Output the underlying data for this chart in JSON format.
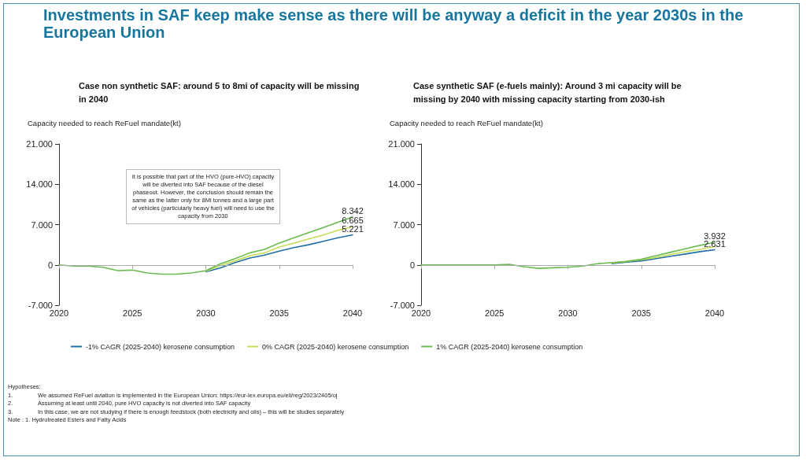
{
  "chart_data": [
    {
      "type": "line",
      "title": "Case non synthetic SAF: around 5 to 8mi of capacity will be missing in 2040",
      "ylabel": "Capacity needed to reach ReFuel mandate(kt)",
      "x": [
        2020,
        2021,
        2022,
        2023,
        2024,
        2025,
        2026,
        2027,
        2028,
        2029,
        2030,
        2031,
        2032,
        2033,
        2034,
        2035,
        2036,
        2037,
        2038,
        2039,
        2040
      ],
      "xlim": [
        2020,
        2040
      ],
      "xticks": [
        2020,
        2025,
        2030,
        2035,
        2040
      ],
      "ylim": [
        -7000,
        21000
      ],
      "yticks": [
        {
          "value": -7000,
          "label": "-7.000"
        },
        0,
        {
          "value": 7000,
          "label": "7.000"
        },
        {
          "value": 14000,
          "label": "14.000"
        },
        {
          "value": 21000,
          "label": "21.000"
        }
      ],
      "grid": false,
      "marker": "none",
      "line_style": "solid",
      "legend": "bottom",
      "ref_lines": [
        {
          "axis": "y",
          "value": 0,
          "color": "#aaaaaa"
        }
      ],
      "annotations": [
        "It is possible that part of the HVO (pure-HVO) capacity will be diverted  into SAF because of the diesel phaseout. However, the conclusion should remain the same as the latter only for 8Mi tonnes and a large part of vehicles (particularly heavy fuel) will need to use the capacity from 2030"
      ],
      "series": [
        {
          "name": "-1% CAGR (2025-2040) kerosene consumption",
          "color": "#1f6fa6",
          "values": [
            null,
            null,
            null,
            null,
            null,
            null,
            null,
            null,
            null,
            null,
            -1200,
            -500,
            400,
            1200,
            1700,
            2400,
            3000,
            3500,
            4100,
            4700,
            5221
          ],
          "value_labels": [
            null,
            null,
            null,
            null,
            null,
            null,
            null,
            null,
            null,
            null,
            null,
            null,
            null,
            null,
            null,
            null,
            null,
            null,
            null,
            null,
            "5.221"
          ]
        },
        {
          "name": "0% CAGR (2025-2040) kerosene consumption",
          "color": "#c5dc55",
          "values": [
            null,
            null,
            null,
            null,
            null,
            null,
            null,
            null,
            null,
            null,
            -1100,
            -100,
            700,
            1600,
            2100,
            3100,
            3800,
            4500,
            5200,
            6000,
            6665
          ],
          "value_labels": [
            null,
            null,
            null,
            null,
            null,
            null,
            null,
            null,
            null,
            null,
            null,
            null,
            null,
            null,
            null,
            null,
            null,
            null,
            null,
            null,
            "6.665"
          ]
        },
        {
          "name": "1% CAGR (2025-2040) kerosene consumption",
          "color": "#6abb4f",
          "values": [
            0,
            -200,
            -200,
            -400,
            -1000,
            -900,
            -1400,
            -1600,
            -1600,
            -1400,
            -1000,
            200,
            1100,
            2100,
            2700,
            3800,
            4700,
            5600,
            6500,
            7400,
            8342
          ],
          "value_labels": [
            null,
            null,
            null,
            null,
            null,
            null,
            null,
            null,
            null,
            null,
            null,
            null,
            null,
            null,
            null,
            null,
            null,
            null,
            null,
            null,
            "8.342"
          ]
        }
      ]
    },
    {
      "type": "line",
      "title": "Case synthetic SAF (e-fuels mainly): Around 3 mi capacity will be missing by 2040 with missing capacity starting from 2030-ish",
      "ylabel": "Capacity needed to reach ReFuel mandate(kt)",
      "x": [
        2020,
        2021,
        2022,
        2023,
        2024,
        2025,
        2026,
        2027,
        2028,
        2029,
        2030,
        2031,
        2032,
        2033,
        2034,
        2035,
        2036,
        2037,
        2038,
        2039,
        2040
      ],
      "xlim": [
        2020,
        2040
      ],
      "xticks": [
        2020,
        2025,
        2030,
        2035,
        2040
      ],
      "ylim": [
        -7000,
        21000
      ],
      "yticks": [
        {
          "value": -7000,
          "label": "-7.000"
        },
        0,
        {
          "value": 7000,
          "label": "7.000"
        },
        {
          "value": 14000,
          "label": "14.000"
        },
        {
          "value": 21000,
          "label": "21.000"
        }
      ],
      "grid": false,
      "marker": "none",
      "line_style": "solid",
      "ref_lines": [
        {
          "axis": "y",
          "value": 0,
          "color": "#aaaaaa"
        }
      ],
      "series": [
        {
          "color": "#1f6fa6",
          "values": [
            null,
            null,
            null,
            null,
            null,
            null,
            null,
            null,
            null,
            null,
            null,
            null,
            null,
            200,
            500,
            700,
            1100,
            1500,
            1900,
            2300,
            2631
          ],
          "value_labels": [
            null,
            null,
            null,
            null,
            null,
            null,
            null,
            null,
            null,
            null,
            null,
            null,
            null,
            null,
            null,
            null,
            null,
            null,
            null,
            null,
            "2.631"
          ]
        },
        {
          "color": "#c5dc55",
          "values": [
            null,
            null,
            null,
            null,
            null,
            null,
            null,
            null,
            null,
            null,
            null,
            null,
            null,
            300,
            600,
            900,
            1300,
            1800,
            2300,
            2700,
            3200
          ]
        },
        {
          "color": "#6abb4f",
          "values": [
            0,
            0,
            0,
            0,
            0,
            0,
            100,
            -300,
            -600,
            -500,
            -400,
            -200,
            200,
            400,
            600,
            1000,
            1600,
            2200,
            2800,
            3400,
            3932
          ],
          "value_labels": [
            null,
            null,
            null,
            null,
            null,
            null,
            null,
            null,
            null,
            null,
            null,
            null,
            null,
            null,
            null,
            null,
            null,
            null,
            null,
            null,
            "3.932"
          ]
        }
      ]
    },
    {
      "type": "other",
      "title": "Investments in SAF keep make sense as there will be anyway a deficit in the year 2030s in the European Union",
      "annotations": [
        "Hypotheses:",
        "1.\tWe assumed ReFuel aviation is implemented in the European Union: https://eur-lex.europa.eu/eli/reg/2023/2405/oj",
        "2.\tAssuming at least until 2040, pure HVO capacity is not diverted into SAF capacity",
        "3.\tIn this case, we are not studying if there is enough feedstock (both electricity and oils) – this will be studies separately",
        "Note : 1. Hydrotreated Esters and Fatty Acids"
      ]
    }
  ]
}
